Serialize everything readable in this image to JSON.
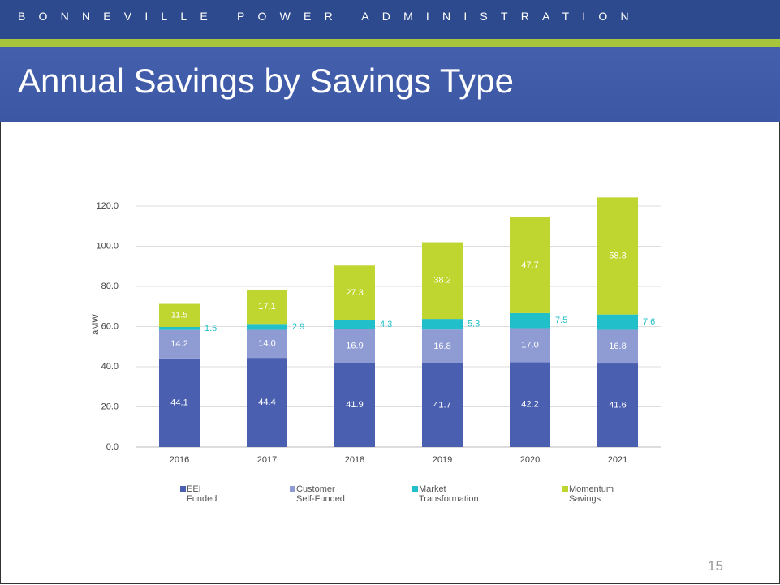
{
  "header": {
    "org": "BONNEVILLE POWER ADMINISTRATION",
    "title": "Annual Savings by Savings Type",
    "page": "15"
  },
  "chart_data": {
    "type": "stacked_bar",
    "y_label": "aMW",
    "categories": [
      "2016",
      "2017",
      "2018",
      "2019",
      "2020",
      "2021"
    ],
    "series": [
      {
        "name": "EEI Funded",
        "color": "#4a5fb0",
        "values": [
          44.1,
          44.4,
          41.9,
          41.7,
          42.2,
          41.6
        ],
        "value_labels": [
          "44.1",
          "44.4",
          "41.9",
          "41.7",
          "42.2",
          "41.6"
        ]
      },
      {
        "name": "Customer Self-Funded",
        "color": "#8f9cd4",
        "values": [
          14.2,
          14.0,
          16.9,
          16.8,
          17.0,
          16.8
        ],
        "value_labels": [
          "14.2",
          "14.0",
          "16.9",
          "16.8",
          "17.0",
          "16.8"
        ]
      },
      {
        "name": "Market Transformation",
        "color": "#20bfc9",
        "values": [
          1.5,
          2.9,
          4.3,
          5.3,
          7.5,
          7.6
        ],
        "value_labels": [
          "1.5",
          "2.9",
          "4.3",
          "5.3",
          "7.5",
          "7.6"
        ]
      },
      {
        "name": "Momentum Savings",
        "color": "#bfd631",
        "values": [
          11.5,
          17.1,
          27.3,
          38.2,
          47.7,
          58.3
        ],
        "value_labels": [
          "11.5",
          "17.1",
          "27.3",
          "38.2",
          "47.7",
          "58.3"
        ]
      }
    ],
    "ylim": [
      0,
      120
    ],
    "yticks": [
      {
        "value": 0,
        "label": "0.0"
      },
      {
        "value": 20,
        "label": "20.0"
      },
      {
        "value": 40,
        "label": "40.0"
      },
      {
        "value": 60,
        "label": "60.0"
      },
      {
        "value": 80,
        "label": "80.0"
      },
      {
        "value": 100,
        "label": "100.0"
      },
      {
        "value": 120,
        "label": "120.0"
      }
    ],
    "grid": true
  }
}
